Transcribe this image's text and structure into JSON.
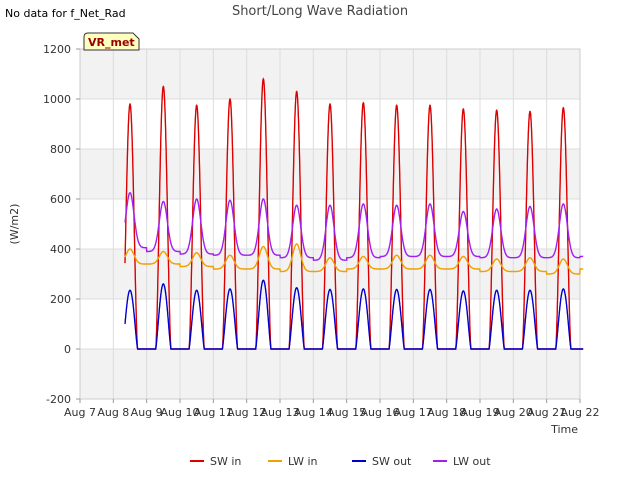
{
  "header": {
    "no_data_text": "No data for f_Net_Rad",
    "title": "Short/Long Wave Radiation"
  },
  "chart_data": {
    "type": "line",
    "title": "Short/Long Wave Radiation",
    "xlabel": "Time",
    "ylabel": "(W/m2)",
    "xlim": [
      "Aug 7",
      "Aug 22"
    ],
    "ylim": [
      -200,
      1200
    ],
    "y_ticks": [
      -200,
      0,
      200,
      400,
      600,
      800,
      1000,
      1200
    ],
    "x_ticks": [
      "Aug 7",
      "Aug 8",
      "Aug 9",
      "Aug 10",
      "Aug 11",
      "Aug 12",
      "Aug 13",
      "Aug 14",
      "Aug 15",
      "Aug 16",
      "Aug 17",
      "Aug 18",
      "Aug 19",
      "Aug 20",
      "Aug 21",
      "Aug 22"
    ],
    "grid": true,
    "shaded_bands": true,
    "legend_position": "bottom-center",
    "annotation_box": "VR_met",
    "days": [
      "Aug 7",
      "Aug 8",
      "Aug 9",
      "Aug 10",
      "Aug 11",
      "Aug 12",
      "Aug 13",
      "Aug 14",
      "Aug 15",
      "Aug 16",
      "Aug 17",
      "Aug 18",
      "Aug 19",
      "Aug 20",
      "Aug 21"
    ],
    "series": [
      {
        "name": "SW in",
        "color": "#dd0000",
        "daily_peak": [
          980,
          1050,
          975,
          1000,
          1080,
          1030,
          980,
          985,
          975,
          975,
          960,
          955,
          950,
          965
        ]
      },
      {
        "name": "LW in",
        "color": "#f0a000",
        "daily_peak": [
          400,
          390,
          385,
          375,
          410,
          420,
          365,
          370,
          375,
          375,
          370,
          360,
          365,
          360
        ],
        "night_level": [
          340,
          340,
          330,
          320,
          320,
          310,
          310,
          320,
          320,
          320,
          320,
          310,
          310,
          300,
          320
        ]
      },
      {
        "name": "SW out",
        "color": "#0000cc",
        "daily_peak": [
          235,
          260,
          235,
          240,
          275,
          245,
          238,
          240,
          238,
          238,
          232,
          235,
          235,
          240
        ]
      },
      {
        "name": "LW out",
        "color": "#a020f0",
        "daily_peak": [
          625,
          590,
          600,
          595,
          600,
          575,
          575,
          580,
          575,
          580,
          550,
          560,
          570,
          580
        ],
        "night_level": [
          405,
          390,
          380,
          375,
          375,
          365,
          355,
          365,
          370,
          370,
          370,
          365,
          365,
          365,
          370
        ]
      }
    ]
  }
}
